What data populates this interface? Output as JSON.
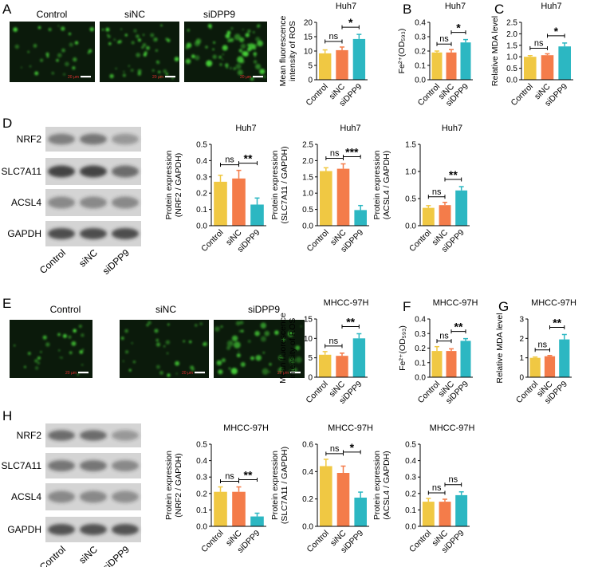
{
  "colors": {
    "control": "#F0C843",
    "sinc": "#F47C4A",
    "sidpp9": "#2CB7C2",
    "fluor_bg": "#0b1a0b",
    "fluor_green": "#49d83a",
    "scale_text": "#e03030"
  },
  "panel_letters": [
    "A",
    "B",
    "C",
    "D",
    "E",
    "F",
    "G",
    "H"
  ],
  "image_labels": {
    "huh7": [
      "Control",
      "siNC",
      "siDPP9"
    ],
    "mhcc": [
      "Control",
      "siNC",
      "siDPP9"
    ],
    "scale_bar": "20 μm"
  },
  "blots": {
    "proteins": [
      "NRF2",
      "SLC7A11",
      "ACSL4",
      "GAPDH"
    ],
    "lanes": [
      "Control",
      "siNC",
      "siDPP9"
    ]
  },
  "chart_data": [
    {
      "id": "a-ros",
      "type": "bar",
      "title": "Huh7",
      "ylabel_lines": [
        "Mean fluorescence",
        "intensity of ROS"
      ],
      "categories": [
        "Control",
        "siNC",
        "siDPP9"
      ],
      "values": [
        9.2,
        10.3,
        14.2
      ],
      "errors": [
        1.2,
        1.1,
        1.6
      ],
      "ylim": [
        0,
        20
      ],
      "yticks": [
        "0",
        "5",
        "10",
        "15",
        "20"
      ],
      "comparisons": [
        {
          "from": 0,
          "to": 1,
          "label": "ns"
        },
        {
          "from": 1,
          "to": 2,
          "label": "*"
        }
      ]
    },
    {
      "id": "b-fe",
      "type": "bar",
      "title": "Huh7",
      "ylabel_lines": [
        "Fe²⁺(OD₅₉₃)"
      ],
      "categories": [
        "Control",
        "siNC",
        "siDPP9"
      ],
      "values": [
        0.19,
        0.19,
        0.26
      ],
      "errors": [
        0.01,
        0.02,
        0.02
      ],
      "ylim": [
        0,
        0.4
      ],
      "yticks": [
        "0.0",
        "0.1",
        "0.2",
        "0.3",
        "0.4"
      ],
      "comparisons": [
        {
          "from": 0,
          "to": 1,
          "label": "ns"
        },
        {
          "from": 1,
          "to": 2,
          "label": "*"
        }
      ]
    },
    {
      "id": "c-mda",
      "type": "bar",
      "title": "Huh7",
      "ylabel_lines": [
        "Relative MDA level"
      ],
      "categories": [
        "Control",
        "siNC",
        "siDPP9"
      ],
      "values": [
        1.0,
        1.07,
        1.45
      ],
      "errors": [
        0.05,
        0.06,
        0.15
      ],
      "ylim": [
        0,
        2.5
      ],
      "yticks": [
        "0.0",
        "0.5",
        "1.0",
        "1.5",
        "2.0",
        "2.5"
      ],
      "comparisons": [
        {
          "from": 0,
          "to": 1,
          "label": "ns"
        },
        {
          "from": 1,
          "to": 2,
          "label": "*"
        }
      ]
    },
    {
      "id": "d-nrf2",
      "type": "bar",
      "title": "Huh7",
      "ylabel_lines": [
        "Protein expression",
        "(NRF2 / GAPDH)"
      ],
      "categories": [
        "Control",
        "siNC",
        "siDPP9"
      ],
      "values": [
        0.27,
        0.29,
        0.13
      ],
      "errors": [
        0.04,
        0.05,
        0.04
      ],
      "ylim": [
        0,
        0.5
      ],
      "yticks": [
        "0.0",
        "0.1",
        "0.2",
        "0.3",
        "0.4",
        "0.5"
      ],
      "comparisons": [
        {
          "from": 0,
          "to": 1,
          "label": "ns"
        },
        {
          "from": 1,
          "to": 2,
          "label": "**"
        }
      ]
    },
    {
      "id": "d-slc",
      "type": "bar",
      "title": "Huh7",
      "ylabel_lines": [
        "Protein expression",
        "(SLC7A11 / GAPDH)"
      ],
      "categories": [
        "Control",
        "siNC",
        "siDPP9"
      ],
      "values": [
        1.68,
        1.75,
        0.48
      ],
      "errors": [
        0.1,
        0.15,
        0.14
      ],
      "ylim": [
        0,
        2.5
      ],
      "yticks": [
        "0.0",
        "0.5",
        "1.0",
        "1.5",
        "2.0",
        "2.5"
      ],
      "comparisons": [
        {
          "from": 0,
          "to": 1,
          "label": "ns"
        },
        {
          "from": 1,
          "to": 2,
          "label": "***"
        }
      ]
    },
    {
      "id": "d-acsl",
      "type": "bar",
      "title": "Huh7",
      "ylabel_lines": [
        "Protein expression",
        "(ACSL4 / GAPDH)"
      ],
      "categories": [
        "Control",
        "siNC",
        "siDPP9"
      ],
      "values": [
        0.33,
        0.38,
        0.65
      ],
      "errors": [
        0.04,
        0.05,
        0.07
      ],
      "ylim": [
        0,
        1.5
      ],
      "yticks": [
        "0.0",
        "0.5",
        "1.0",
        "1.5"
      ],
      "comparisons": [
        {
          "from": 0,
          "to": 1,
          "label": "ns"
        },
        {
          "from": 1,
          "to": 2,
          "label": "**"
        }
      ]
    },
    {
      "id": "e-ros",
      "type": "bar",
      "title": "MHCC-97H",
      "ylabel_lines": [
        "Mean fluorescence",
        "intensity of ROS"
      ],
      "categories": [
        "Control",
        "siNC",
        "siDPP9"
      ],
      "values": [
        5.8,
        5.5,
        10.0
      ],
      "errors": [
        0.8,
        0.7,
        1.2
      ],
      "ylim": [
        0,
        15
      ],
      "yticks": [
        "0",
        "5",
        "10",
        "15"
      ],
      "comparisons": [
        {
          "from": 0,
          "to": 1,
          "label": "ns"
        },
        {
          "from": 1,
          "to": 2,
          "label": "**"
        }
      ]
    },
    {
      "id": "f-fe",
      "type": "bar",
      "title": "MHCC-97H",
      "ylabel_lines": [
        "Fe²⁺(OD₅₉₃)"
      ],
      "categories": [
        "Control",
        "siNC",
        "siDPP9"
      ],
      "values": [
        0.18,
        0.18,
        0.25
      ],
      "errors": [
        0.03,
        0.015,
        0.015
      ],
      "ylim": [
        0,
        0.4
      ],
      "yticks": [
        "0.0",
        "0.1",
        "0.2",
        "0.3",
        "0.4"
      ],
      "comparisons": [
        {
          "from": 0,
          "to": 1,
          "label": "ns"
        },
        {
          "from": 1,
          "to": 2,
          "label": "**"
        }
      ]
    },
    {
      "id": "g-mda",
      "type": "bar",
      "title": "MHCC-97H",
      "ylabel_lines": [
        "Relative MDA level"
      ],
      "categories": [
        "Control",
        "siNC",
        "siDPP9"
      ],
      "values": [
        1.0,
        1.08,
        1.95
      ],
      "errors": [
        0.04,
        0.04,
        0.25
      ],
      "ylim": [
        0,
        3
      ],
      "yticks": [
        "0",
        "1",
        "2",
        "3"
      ],
      "comparisons": [
        {
          "from": 0,
          "to": 1,
          "label": "ns"
        },
        {
          "from": 1,
          "to": 2,
          "label": "**"
        }
      ]
    },
    {
      "id": "h-nrf2",
      "type": "bar",
      "title": "MHCC-97H",
      "ylabel_lines": [
        "Protein expression",
        "(NRF2 / GAPDH)"
      ],
      "categories": [
        "Control",
        "siNC",
        "siDPP9"
      ],
      "values": [
        0.21,
        0.21,
        0.06
      ],
      "errors": [
        0.03,
        0.03,
        0.02
      ],
      "ylim": [
        0,
        0.5
      ],
      "yticks": [
        "0.0",
        "0.1",
        "0.2",
        "0.3",
        "0.4",
        "0.5"
      ],
      "comparisons": [
        {
          "from": 0,
          "to": 1,
          "label": "ns"
        },
        {
          "from": 1,
          "to": 2,
          "label": "**"
        }
      ]
    },
    {
      "id": "h-slc",
      "type": "bar",
      "title": "MHCC-97H",
      "ylabel_lines": [
        "Protein expression",
        "(SLC7A11 / GAPDH)"
      ],
      "categories": [
        "Control",
        "siNC",
        "siDPP9"
      ],
      "values": [
        0.44,
        0.39,
        0.21
      ],
      "errors": [
        0.05,
        0.05,
        0.04
      ],
      "ylim": [
        0,
        0.6
      ],
      "yticks": [
        "0.0",
        "0.2",
        "0.4",
        "0.6"
      ],
      "comparisons": [
        {
          "from": 0,
          "to": 1,
          "label": "ns"
        },
        {
          "from": 1,
          "to": 2,
          "label": "*"
        }
      ]
    },
    {
      "id": "h-acsl",
      "type": "bar",
      "title": "MHCC-97H",
      "ylabel_lines": [
        "Protein expression",
        "(ACSL4 / GAPDH)"
      ],
      "categories": [
        "Control",
        "siNC",
        "siDPP9"
      ],
      "values": [
        0.15,
        0.15,
        0.19
      ],
      "errors": [
        0.02,
        0.015,
        0.02
      ],
      "ylim": [
        0,
        0.5
      ],
      "yticks": [
        "0.0",
        "0.1",
        "0.2",
        "0.3",
        "0.4",
        "0.5"
      ],
      "comparisons": [
        {
          "from": 0,
          "to": 1,
          "label": "ns"
        },
        {
          "from": 1,
          "to": 2,
          "label": "ns"
        }
      ]
    }
  ]
}
